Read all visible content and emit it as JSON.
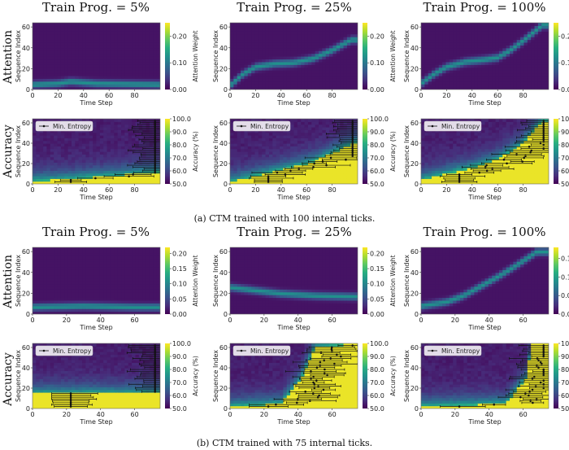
{
  "colormap": [
    "#440154",
    "#472d7b",
    "#3b528b",
    "#2c728e",
    "#21918c",
    "#28ae80",
    "#5ec962",
    "#addc30",
    "#fde725"
  ],
  "groups": [
    {
      "caption": "(a) CTM trained with 100 internal ticks.",
      "columns": [
        "Train Prog. = 5%",
        "Train Prog. = 25%",
        "Train Prog. = 100%"
      ],
      "xmax": 100,
      "xticks": [
        "0",
        "20",
        "40",
        "60",
        "80"
      ],
      "rows": [
        {
          "label": "Attention",
          "ylabel": "Sequence Index",
          "xlabel": "Time Step",
          "cbar_label": "Attention Weight",
          "cbar_ticks": [
            [
              "0.20",
              "0.10",
              "0.00"
            ],
            [
              "0.20",
              "0.10",
              "0.00"
            ],
            [
              "0.20",
              "0.10",
              "0.00"
            ]
          ],
          "yticks": [
            "60",
            "40",
            "20",
            "0"
          ]
        },
        {
          "label": "Accuracy",
          "ylabel": "Sequence Index",
          "xlabel": "Time Step",
          "cbar_label": "Accuracy (%)",
          "cbar_ticks": [
            [
              "100.0",
              "90.0",
              "80.0",
              "70.0",
              "60.0",
              "50.0"
            ],
            [
              "100.0",
              "90.0",
              "80.0",
              "70.0",
              "60.0",
              "50.0"
            ],
            [
              "100.0",
              "90.0",
              "80.0",
              "70.0",
              "60.0",
              "50.0"
            ]
          ],
          "yticks": [
            "60",
            "40",
            "20",
            "0"
          ],
          "legend": "Min. Entropy"
        }
      ]
    },
    {
      "caption": "(b) CTM trained with 75 internal ticks.",
      "columns": [
        "Train Prog. = 5%",
        "Train Prog. = 25%",
        "Train Prog. = 100%"
      ],
      "xmax": 75,
      "xticks": [
        "0",
        "20",
        "40",
        "60"
      ],
      "rows": [
        {
          "label": "Attention",
          "ylabel": "Sequence Index",
          "xlabel": "Time Step",
          "cbar_label": "Attention Weight",
          "cbar_ticks": [
            [
              "0.20",
              "0.15",
              "0.10",
              "0.05",
              "0.00"
            ],
            [
              "0.20",
              "0.15",
              "0.10",
              "0.05",
              "0.00"
            ],
            [
              "0.15",
              "0.10",
              "0.05",
              "0.00"
            ]
          ],
          "yticks": [
            "60",
            "40",
            "20",
            "0"
          ]
        },
        {
          "label": "Accuracy",
          "ylabel": "Sequence Index",
          "xlabel": "Time Step",
          "cbar_label": "Accuracy (%)",
          "cbar_ticks": [
            [
              "100.0",
              "90.0",
              "80.0",
              "70.0",
              "60.0",
              "50.0"
            ],
            [
              "100.0",
              "90.0",
              "80.0",
              "70.0",
              "60.0",
              "50.0"
            ],
            [
              "100.0",
              "90.0",
              "80.0",
              "70.0",
              "60.0",
              "50.0"
            ]
          ],
          "yticks": [
            "60",
            "40",
            "20",
            "0"
          ],
          "legend": "Min. Entropy"
        }
      ]
    }
  ],
  "chart_data": [
    {
      "type": "heatmap",
      "title": "Train Prog. = 5%",
      "xlabel": "Time Step",
      "ylabel": "Sequence Index",
      "colorbar": "Attention Weight",
      "xlim": [
        0,
        100
      ],
      "ylim": [
        0,
        64
      ],
      "clim": [
        0,
        0.25
      ],
      "pattern": "attention",
      "trajectory": [
        [
          0,
          5
        ],
        [
          20,
          6
        ],
        [
          30,
          8
        ],
        [
          50,
          6
        ],
        [
          100,
          5
        ]
      ]
    },
    {
      "type": "heatmap",
      "title": "Train Prog. = 25%",
      "xlabel": "Time Step",
      "ylabel": "Sequence Index",
      "colorbar": "Attention Weight",
      "xlim": [
        0,
        100
      ],
      "ylim": [
        0,
        64
      ],
      "clim": [
        0,
        0.25
      ],
      "pattern": "attention",
      "trajectory": [
        [
          0,
          4
        ],
        [
          10,
          15
        ],
        [
          20,
          22
        ],
        [
          35,
          25
        ],
        [
          50,
          26
        ],
        [
          65,
          30
        ],
        [
          80,
          38
        ],
        [
          95,
          48
        ]
      ]
    },
    {
      "type": "heatmap",
      "title": "Train Prog. = 100%",
      "xlabel": "Time Step",
      "ylabel": "Sequence Index",
      "colorbar": "Attention Weight",
      "xlim": [
        0,
        100
      ],
      "ylim": [
        0,
        64
      ],
      "clim": [
        0,
        0.25
      ],
      "pattern": "attention",
      "trajectory": [
        [
          0,
          6
        ],
        [
          10,
          15
        ],
        [
          20,
          22
        ],
        [
          35,
          27
        ],
        [
          50,
          29
        ],
        [
          60,
          31
        ],
        [
          70,
          38
        ],
        [
          80,
          47
        ],
        [
          95,
          62
        ]
      ]
    },
    {
      "type": "heatmap",
      "title": "Train Prog. = 5%",
      "xlabel": "Time Step",
      "ylabel": "Sequence Index",
      "colorbar": "Accuracy (%)",
      "legend": "Min. Entropy",
      "xlim": [
        0,
        100
      ],
      "ylim": [
        0,
        64
      ],
      "clim": [
        50,
        100
      ],
      "pattern": "accuracy",
      "boundary": [
        [
          0,
          3
        ],
        [
          30,
          5
        ],
        [
          60,
          8
        ],
        [
          100,
          12
        ]
      ]
    },
    {
      "type": "heatmap",
      "title": "Train Prog. = 25%",
      "xlabel": "Time Step",
      "ylabel": "Sequence Index",
      "colorbar": "Accuracy (%)",
      "legend": "Min. Entropy",
      "xlim": [
        0,
        100
      ],
      "ylim": [
        0,
        64
      ],
      "clim": [
        50,
        100
      ],
      "pattern": "accuracy",
      "boundary": [
        [
          0,
          2
        ],
        [
          20,
          8
        ],
        [
          40,
          14
        ],
        [
          60,
          20
        ],
        [
          80,
          30
        ],
        [
          100,
          42
        ]
      ]
    },
    {
      "type": "heatmap",
      "title": "Train Prog. = 100%",
      "xlabel": "Time Step",
      "ylabel": "Sequence Index",
      "colorbar": "Accuracy (%)",
      "legend": "Min. Entropy",
      "xlim": [
        0,
        100
      ],
      "ylim": [
        0,
        64
      ],
      "clim": [
        50,
        100
      ],
      "pattern": "accuracy",
      "boundary": [
        [
          0,
          4
        ],
        [
          20,
          10
        ],
        [
          40,
          16
        ],
        [
          60,
          24
        ],
        [
          80,
          40
        ],
        [
          95,
          62
        ]
      ]
    },
    {
      "type": "heatmap",
      "title": "Train Prog. = 5%",
      "xlabel": "Time Step",
      "ylabel": "Sequence Index",
      "colorbar": "Attention Weight",
      "xlim": [
        0,
        75
      ],
      "ylim": [
        0,
        64
      ],
      "clim": [
        0,
        0.22
      ],
      "pattern": "attention",
      "trajectory": [
        [
          0,
          7
        ],
        [
          30,
          8
        ],
        [
          60,
          7
        ],
        [
          75,
          7
        ]
      ]
    },
    {
      "type": "heatmap",
      "title": "Train Prog. = 25%",
      "xlabel": "Time Step",
      "ylabel": "Sequence Index",
      "colorbar": "Attention Weight",
      "xlim": [
        0,
        75
      ],
      "ylim": [
        0,
        64
      ],
      "clim": [
        0,
        0.22
      ],
      "pattern": "attention",
      "trajectory": [
        [
          0,
          26
        ],
        [
          15,
          23
        ],
        [
          30,
          20
        ],
        [
          50,
          18
        ],
        [
          75,
          17
        ]
      ]
    },
    {
      "type": "heatmap",
      "title": "Train Prog. = 100%",
      "xlabel": "Time Step",
      "ylabel": "Sequence Index",
      "colorbar": "Attention Weight",
      "xlim": [
        0,
        75
      ],
      "ylim": [
        0,
        64
      ],
      "clim": [
        0,
        0.18
      ],
      "pattern": "attention",
      "trajectory": [
        [
          0,
          8
        ],
        [
          15,
          12
        ],
        [
          25,
          18
        ],
        [
          35,
          27
        ],
        [
          45,
          36
        ],
        [
          55,
          46
        ],
        [
          68,
          60
        ]
      ]
    },
    {
      "type": "heatmap",
      "title": "Train Prog. = 5%",
      "xlabel": "Time Step",
      "ylabel": "Sequence Index",
      "colorbar": "Accuracy (%)",
      "legend": "Min. Entropy",
      "xlim": [
        0,
        75
      ],
      "ylim": [
        0,
        64
      ],
      "clim": [
        50,
        100
      ],
      "pattern": "accuracy",
      "boundary": [
        [
          0,
          15
        ],
        [
          30,
          15
        ],
        [
          75,
          15
        ]
      ]
    },
    {
      "type": "heatmap",
      "title": "Train Prog. = 25%",
      "xlabel": "Time Step",
      "ylabel": "Sequence Index",
      "colorbar": "Accuracy (%)",
      "legend": "Min. Entropy",
      "xlim": [
        0,
        75
      ],
      "ylim": [
        0,
        64
      ],
      "clim": [
        50,
        100
      ],
      "pattern": "accuracy",
      "boundary": [
        [
          0,
          2
        ],
        [
          30,
          5
        ],
        [
          42,
          30
        ],
        [
          50,
          60
        ],
        [
          75,
          64
        ]
      ]
    },
    {
      "type": "heatmap",
      "title": "Train Prog. = 100%",
      "xlabel": "Time Step",
      "ylabel": "Sequence Index",
      "colorbar": "Accuracy (%)",
      "legend": "Min. Entropy",
      "xlim": [
        0,
        75
      ],
      "ylim": [
        0,
        64
      ],
      "clim": [
        50,
        100
      ],
      "pattern": "accuracy",
      "boundary": [
        [
          0,
          2
        ],
        [
          50,
          5
        ],
        [
          62,
          30
        ],
        [
          65,
          64
        ],
        [
          75,
          64
        ]
      ]
    }
  ]
}
